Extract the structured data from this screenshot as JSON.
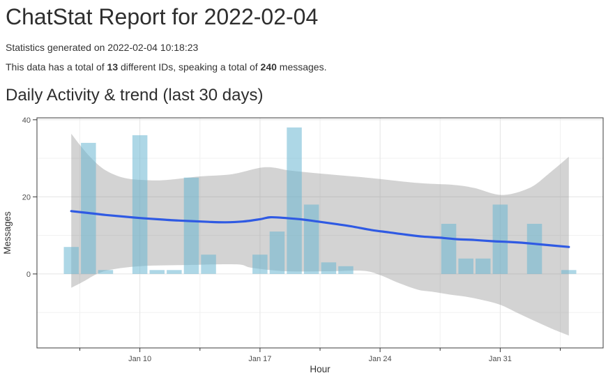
{
  "page": {
    "title": "ChatStat Report for 2022-02-04",
    "generated": "Statistics generated on 2022-02-04 10:18:23",
    "summary": {
      "prefix": "This data has a total of ",
      "id_count": "13",
      "middle": " different IDs, speaking a total of ",
      "message_count": "240",
      "suffix": " messages."
    },
    "section_title": "Daily Activity & trend (last 30 days)"
  },
  "chart_data": {
    "type": "bar",
    "overlays": [
      "loess_trend_line",
      "confidence_band"
    ],
    "title": "Daily Activity & trend (last 30 days)",
    "xlabel": "Hour",
    "ylabel": "Messages",
    "legend": "none",
    "grid": "on",
    "bars": [
      {
        "date": "Jan 6",
        "day": 6,
        "messages": 7
      },
      {
        "date": "Jan 7",
        "day": 7,
        "messages": 34
      },
      {
        "date": "Jan 8",
        "day": 8,
        "messages": 1
      },
      {
        "date": "Jan 10",
        "day": 10,
        "messages": 36
      },
      {
        "date": "Jan 11",
        "day": 11,
        "messages": 1
      },
      {
        "date": "Jan 12",
        "day": 12,
        "messages": 1
      },
      {
        "date": "Jan 13",
        "day": 13,
        "messages": 25
      },
      {
        "date": "Jan 14",
        "day": 14,
        "messages": 5
      },
      {
        "date": "Jan 17",
        "day": 17,
        "messages": 5
      },
      {
        "date": "Jan 18",
        "day": 18,
        "messages": 11
      },
      {
        "date": "Jan 19",
        "day": 19,
        "messages": 38
      },
      {
        "date": "Jan 20",
        "day": 20,
        "messages": 18
      },
      {
        "date": "Jan 21",
        "day": 21,
        "messages": 3
      },
      {
        "date": "Jan 22",
        "day": 22,
        "messages": 2
      },
      {
        "date": "Jan 28",
        "day": 28,
        "messages": 13
      },
      {
        "date": "Jan 29",
        "day": 29,
        "messages": 4
      },
      {
        "date": "Jan 30",
        "day": 30,
        "messages": 4
      },
      {
        "date": "Jan 31",
        "day": 31,
        "messages": 18
      },
      {
        "date": "Feb 2",
        "day": 33,
        "messages": 13
      },
      {
        "date": "Feb 4",
        "day": 35,
        "messages": 1
      }
    ],
    "trend": [
      [
        6,
        16.3
      ],
      [
        7,
        15.8
      ],
      [
        8,
        15.3
      ],
      [
        9,
        14.9
      ],
      [
        10,
        14.5
      ],
      [
        11,
        14.2
      ],
      [
        12,
        13.9
      ],
      [
        13,
        13.7
      ],
      [
        14,
        13.5
      ],
      [
        15,
        13.4
      ],
      [
        16,
        13.6
      ],
      [
        17,
        14.2
      ],
      [
        17.6,
        14.7
      ],
      [
        18.5,
        14.5
      ],
      [
        19.5,
        14.1
      ],
      [
        20.5,
        13.5
      ],
      [
        21.5,
        12.9
      ],
      [
        22.5,
        12.2
      ],
      [
        23.5,
        11.4
      ],
      [
        24.5,
        10.8
      ],
      [
        25.5,
        10.2
      ],
      [
        26.5,
        9.7
      ],
      [
        27.5,
        9.4
      ],
      [
        28.5,
        9.0
      ],
      [
        29.5,
        8.8
      ],
      [
        30.5,
        8.5
      ],
      [
        31.5,
        8.3
      ],
      [
        32.5,
        8.0
      ],
      [
        33.5,
        7.6
      ],
      [
        35,
        7.0
      ]
    ],
    "band_upper": [
      [
        6,
        36.4
      ],
      [
        6.5,
        33.5
      ],
      [
        7.2,
        29.9
      ],
      [
        8,
        26.9
      ],
      [
        9.1,
        24.9
      ],
      [
        10.5,
        24.3
      ],
      [
        11.6,
        24.4
      ],
      [
        13.5,
        25.3
      ],
      [
        15.4,
        25.9
      ],
      [
        17.3,
        27.7
      ],
      [
        18.8,
        26.8
      ],
      [
        20.9,
        25.9
      ],
      [
        23.4,
        24.9
      ],
      [
        26.2,
        23.6
      ],
      [
        28.3,
        23.1
      ],
      [
        29.5,
        22.3
      ],
      [
        31.1,
        20.5
      ],
      [
        32.7,
        22.3
      ],
      [
        33.8,
        25.9
      ],
      [
        35,
        30.4
      ]
    ],
    "band_lower": [
      [
        6,
        -3.6
      ],
      [
        6.7,
        -2.0
      ],
      [
        7.5,
        0.0
      ],
      [
        8.3,
        1.1
      ],
      [
        10,
        2.0
      ],
      [
        12.4,
        2.3
      ],
      [
        15.6,
        2.5
      ],
      [
        16.5,
        1.6
      ],
      [
        18.5,
        0.7
      ],
      [
        20.9,
        0.7
      ],
      [
        23,
        0.8
      ],
      [
        24,
        -0.3
      ],
      [
        25,
        -2.2
      ],
      [
        26.2,
        -4.1
      ],
      [
        27,
        -4.6
      ],
      [
        28,
        -5.3
      ],
      [
        29,
        -5.9
      ],
      [
        30,
        -6.8
      ],
      [
        31,
        -8.0
      ],
      [
        32,
        -10.1
      ],
      [
        33,
        -12.2
      ],
      [
        34,
        -14.2
      ],
      [
        35,
        -16.0
      ]
    ],
    "x_axis": {
      "title": "Hour",
      "domain": [
        4,
        37
      ],
      "major_ticks": [
        {
          "day": 10,
          "label": "Jan 10"
        },
        {
          "day": 17,
          "label": "Jan 17"
        },
        {
          "day": 24,
          "label": "Jan 24"
        },
        {
          "day": 31,
          "label": "Jan 31"
        }
      ],
      "minor_ticks": [
        6.5,
        13.5,
        20.5,
        27.5,
        34.5
      ]
    },
    "y_axis": {
      "title": "Messages",
      "domain": [
        -19.2,
        40.5
      ],
      "major_ticks": [
        0,
        20,
        40
      ],
      "minor_gridlines": [
        -10,
        10,
        30
      ]
    },
    "colors": {
      "bar": "rgba(106,183,210,0.55)",
      "band": "rgba(140,140,140,0.38)",
      "trend": "#2f5ae3",
      "grid_major": "#e4e4e4",
      "grid_minor": "#f1f1f1",
      "panel_border": "#4d4d4d",
      "tick": "#333333",
      "tick_label": "#4d4d4d",
      "axis_title": "#333333"
    }
  }
}
